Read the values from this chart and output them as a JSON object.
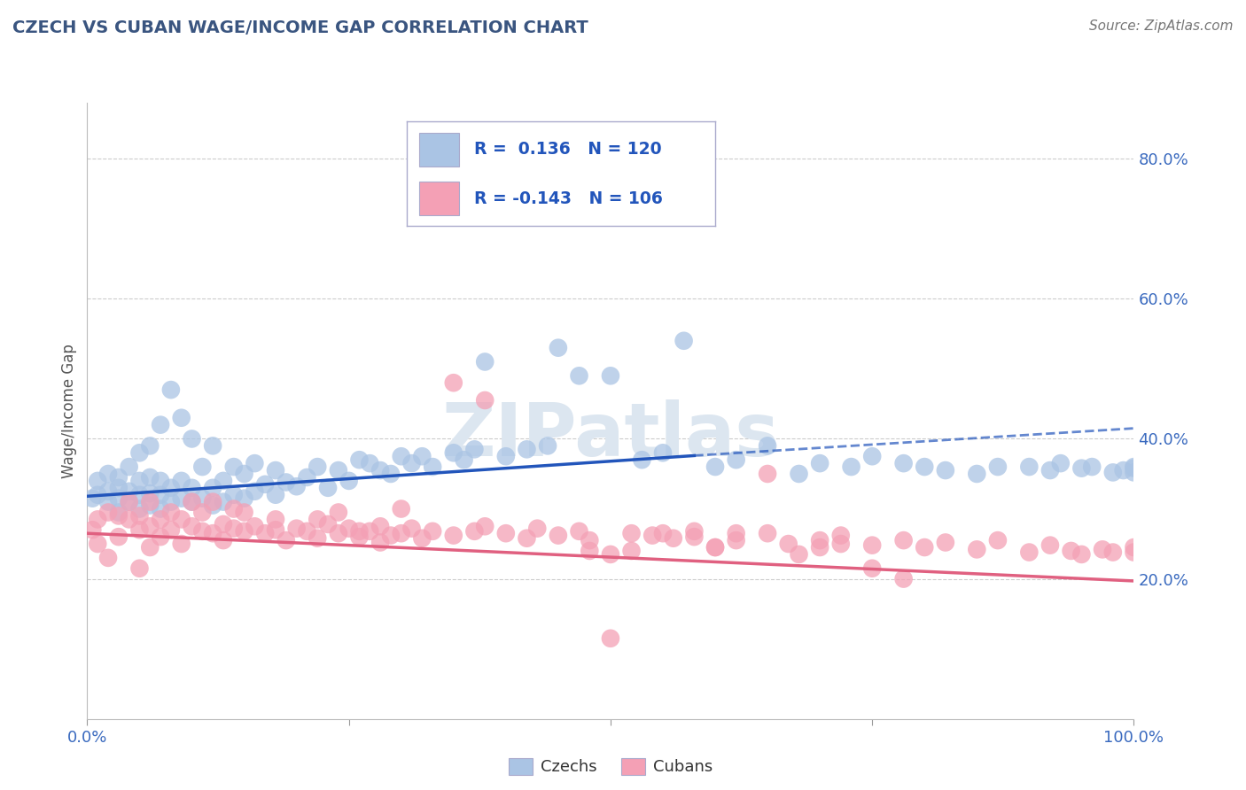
{
  "title": "CZECH VS CUBAN WAGE/INCOME GAP CORRELATION CHART",
  "source": "Source: ZipAtlas.com",
  "ylabel": "Wage/Income Gap",
  "xlim": [
    0,
    1
  ],
  "ylim": [
    0,
    0.88
  ],
  "ytick_positions": [
    0.2,
    0.4,
    0.6,
    0.8
  ],
  "ytick_labels": [
    "20.0%",
    "40.0%",
    "60.0%",
    "80.0%"
  ],
  "czech_color": "#aac4e4",
  "cuban_color": "#f4a0b5",
  "czech_line_color": "#2255bb",
  "cuban_line_color": "#e06080",
  "background_color": "#ffffff",
  "grid_color": "#cccccc",
  "title_color": "#3a5580",
  "axis_label_color": "#3a6abf",
  "legend_r_color": "#2255bb",
  "watermark_color": "#dce6f0",
  "czech_trend_start_x": 0.0,
  "czech_trend_start_y": 0.318,
  "czech_trend_end_solid_x": 0.58,
  "czech_trend_end_solid_y": 0.376,
  "czech_trend_end_dashed_x": 1.0,
  "czech_trend_end_dashed_y": 0.415,
  "cuban_trend_start_x": 0.0,
  "cuban_trend_start_y": 0.265,
  "cuban_trend_end_x": 1.0,
  "cuban_trend_end_y": 0.197,
  "czech_scatter_x": [
    0.005,
    0.01,
    0.01,
    0.02,
    0.02,
    0.02,
    0.03,
    0.03,
    0.03,
    0.03,
    0.04,
    0.04,
    0.04,
    0.05,
    0.05,
    0.05,
    0.05,
    0.06,
    0.06,
    0.06,
    0.06,
    0.07,
    0.07,
    0.07,
    0.07,
    0.08,
    0.08,
    0.08,
    0.09,
    0.09,
    0.09,
    0.1,
    0.1,
    0.1,
    0.11,
    0.11,
    0.12,
    0.12,
    0.12,
    0.13,
    0.13,
    0.14,
    0.14,
    0.15,
    0.15,
    0.16,
    0.16,
    0.17,
    0.18,
    0.18,
    0.19,
    0.2,
    0.21,
    0.22,
    0.23,
    0.24,
    0.25,
    0.26,
    0.27,
    0.28,
    0.29,
    0.3,
    0.31,
    0.32,
    0.33,
    0.35,
    0.36,
    0.37,
    0.38,
    0.4,
    0.42,
    0.44,
    0.45,
    0.47,
    0.5,
    0.53,
    0.55,
    0.57,
    0.6,
    0.62,
    0.65,
    0.68,
    0.7,
    0.73,
    0.75,
    0.78,
    0.8,
    0.82,
    0.85,
    0.87,
    0.9,
    0.92,
    0.93,
    0.95,
    0.96,
    0.98,
    0.99,
    1.0,
    1.0,
    1.0
  ],
  "czech_scatter_y": [
    0.315,
    0.32,
    0.34,
    0.31,
    0.325,
    0.35,
    0.295,
    0.315,
    0.33,
    0.345,
    0.31,
    0.325,
    0.36,
    0.3,
    0.32,
    0.34,
    0.38,
    0.305,
    0.322,
    0.345,
    0.39,
    0.3,
    0.32,
    0.34,
    0.42,
    0.31,
    0.33,
    0.47,
    0.315,
    0.34,
    0.43,
    0.31,
    0.33,
    0.4,
    0.315,
    0.36,
    0.305,
    0.33,
    0.39,
    0.31,
    0.34,
    0.32,
    0.36,
    0.315,
    0.35,
    0.325,
    0.365,
    0.335,
    0.32,
    0.355,
    0.338,
    0.332,
    0.345,
    0.36,
    0.33,
    0.355,
    0.34,
    0.37,
    0.365,
    0.355,
    0.35,
    0.375,
    0.365,
    0.375,
    0.36,
    0.38,
    0.37,
    0.385,
    0.51,
    0.375,
    0.385,
    0.39,
    0.53,
    0.49,
    0.49,
    0.37,
    0.38,
    0.54,
    0.36,
    0.37,
    0.39,
    0.35,
    0.365,
    0.36,
    0.375,
    0.365,
    0.36,
    0.355,
    0.35,
    0.36,
    0.36,
    0.355,
    0.365,
    0.358,
    0.36,
    0.352,
    0.355,
    0.36,
    0.352,
    0.358
  ],
  "cuban_scatter_x": [
    0.005,
    0.01,
    0.01,
    0.02,
    0.02,
    0.03,
    0.03,
    0.04,
    0.04,
    0.05,
    0.05,
    0.05,
    0.06,
    0.06,
    0.06,
    0.07,
    0.07,
    0.08,
    0.08,
    0.09,
    0.09,
    0.1,
    0.1,
    0.11,
    0.11,
    0.12,
    0.12,
    0.13,
    0.13,
    0.14,
    0.14,
    0.15,
    0.15,
    0.16,
    0.17,
    0.18,
    0.18,
    0.19,
    0.2,
    0.21,
    0.22,
    0.23,
    0.24,
    0.25,
    0.26,
    0.27,
    0.28,
    0.29,
    0.3,
    0.31,
    0.32,
    0.33,
    0.35,
    0.37,
    0.38,
    0.4,
    0.42,
    0.43,
    0.45,
    0.47,
    0.48,
    0.5,
    0.52,
    0.54,
    0.56,
    0.58,
    0.6,
    0.62,
    0.65,
    0.67,
    0.7,
    0.72,
    0.75,
    0.78,
    0.8,
    0.82,
    0.85,
    0.87,
    0.9,
    0.92,
    0.94,
    0.95,
    0.97,
    0.98,
    1.0,
    1.0,
    0.35,
    0.38,
    0.52,
    0.55,
    0.3,
    0.48,
    0.5,
    0.22,
    0.24,
    0.26,
    0.28,
    0.58,
    0.6,
    0.62,
    0.65,
    0.68,
    0.7,
    0.72,
    0.75,
    0.78
  ],
  "cuban_scatter_y": [
    0.27,
    0.285,
    0.25,
    0.295,
    0.23,
    0.29,
    0.26,
    0.285,
    0.31,
    0.27,
    0.29,
    0.215,
    0.275,
    0.31,
    0.245,
    0.285,
    0.26,
    0.295,
    0.27,
    0.285,
    0.25,
    0.275,
    0.31,
    0.268,
    0.295,
    0.265,
    0.31,
    0.278,
    0.255,
    0.272,
    0.3,
    0.268,
    0.295,
    0.275,
    0.265,
    0.285,
    0.27,
    0.255,
    0.272,
    0.268,
    0.258,
    0.278,
    0.265,
    0.272,
    0.26,
    0.268,
    0.275,
    0.262,
    0.265,
    0.272,
    0.258,
    0.268,
    0.262,
    0.268,
    0.275,
    0.265,
    0.258,
    0.272,
    0.262,
    0.268,
    0.255,
    0.235,
    0.265,
    0.262,
    0.258,
    0.268,
    0.245,
    0.255,
    0.265,
    0.25,
    0.255,
    0.262,
    0.248,
    0.255,
    0.245,
    0.252,
    0.242,
    0.255,
    0.238,
    0.248,
    0.24,
    0.235,
    0.242,
    0.238,
    0.245,
    0.238,
    0.48,
    0.455,
    0.24,
    0.265,
    0.3,
    0.24,
    0.115,
    0.285,
    0.295,
    0.268,
    0.252,
    0.26,
    0.245,
    0.265,
    0.35,
    0.235,
    0.245,
    0.25,
    0.215,
    0.2
  ]
}
